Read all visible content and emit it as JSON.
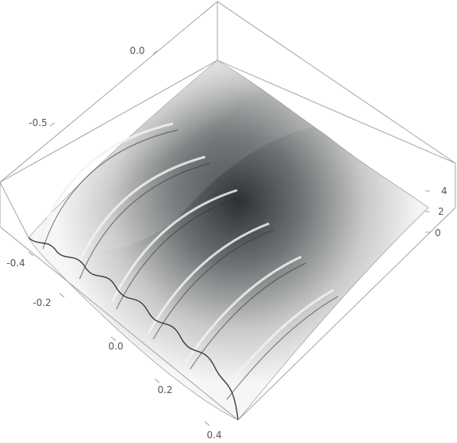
{
  "chart_data": {
    "type": "surface3d",
    "title": "",
    "axes": {
      "y": {
        "ticks": [
          "0.0",
          "-0.5"
        ]
      },
      "x": {
        "ticks": [
          "-0.4",
          "-0.2",
          "0.0",
          "0.2",
          "0.4"
        ]
      },
      "z": {
        "ticks": [
          "4",
          "2",
          "0"
        ]
      }
    },
    "surface": {
      "ridge_count": 6,
      "peak_height": 4.5
    },
    "colors": {
      "surface_light": "#f6f6f4",
      "surface_dark": "#2e3133",
      "box": "#9a9a9a",
      "text": "#555555"
    }
  }
}
